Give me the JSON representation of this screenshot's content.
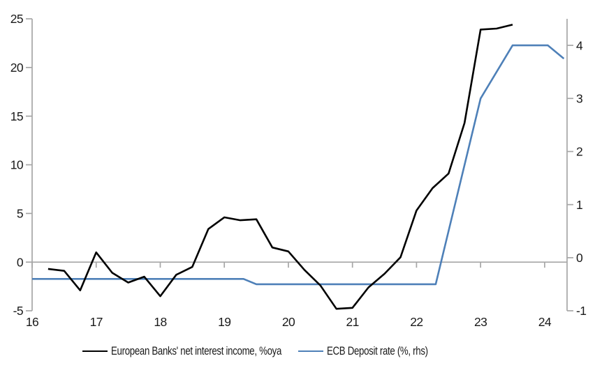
{
  "chart_data": {
    "type": "line",
    "legend_position": "bottom",
    "grid": {
      "zero_line": true,
      "gridlines": false
    },
    "x_axis": {
      "ticks": [
        16,
        17,
        18,
        19,
        20,
        21,
        22,
        23,
        24
      ],
      "range": [
        16,
        24.35
      ]
    },
    "left_axis": {
      "ticks": [
        -5,
        0,
        5,
        10,
        15,
        20,
        25
      ],
      "range": [
        -5,
        25
      ]
    },
    "right_axis": {
      "ticks": [
        -1,
        0,
        1,
        2,
        3,
        4
      ],
      "range": [
        -1,
        4.5
      ]
    },
    "colors": {
      "axis": "#a6a6a6",
      "text": "#1a1a1a",
      "background": "#ffffff",
      "nii_line": "#000000",
      "ecb_line": "#4e80b8"
    },
    "series": [
      {
        "key": "nii",
        "name": "European Banks' net interest income, %oya",
        "axis": "left",
        "color": "#000000",
        "x": [
          16.25,
          16.5,
          16.75,
          17.0,
          17.25,
          17.5,
          17.75,
          18.0,
          18.25,
          18.5,
          18.75,
          19.0,
          19.25,
          19.5,
          19.75,
          20.0,
          20.25,
          20.5,
          20.75,
          21.0,
          21.25,
          21.5,
          21.75,
          22.0,
          22.25,
          22.5,
          22.75,
          23.0,
          23.25,
          23.5
        ],
        "values": [
          -0.7,
          -0.9,
          -2.9,
          1.0,
          -1.1,
          -2.1,
          -1.5,
          -3.5,
          -1.3,
          -0.5,
          3.4,
          4.6,
          4.3,
          4.4,
          1.5,
          1.1,
          -0.8,
          -2.4,
          -4.8,
          -4.7,
          -2.6,
          -1.2,
          0.5,
          5.3,
          7.6,
          9.1,
          14.3,
          23.9,
          24.0,
          24.4
        ]
      },
      {
        "key": "ecb",
        "name": "ECB Deposit rate (%, rhs)",
        "axis": "right",
        "color": "#4e80b8",
        "x": [
          16.0,
          19.3,
          19.5,
          22.3,
          23.0,
          23.5,
          24.05,
          24.3
        ],
        "values": [
          -0.4,
          -0.4,
          -0.5,
          -0.5,
          3.0,
          4.0,
          4.0,
          3.75
        ]
      }
    ]
  }
}
